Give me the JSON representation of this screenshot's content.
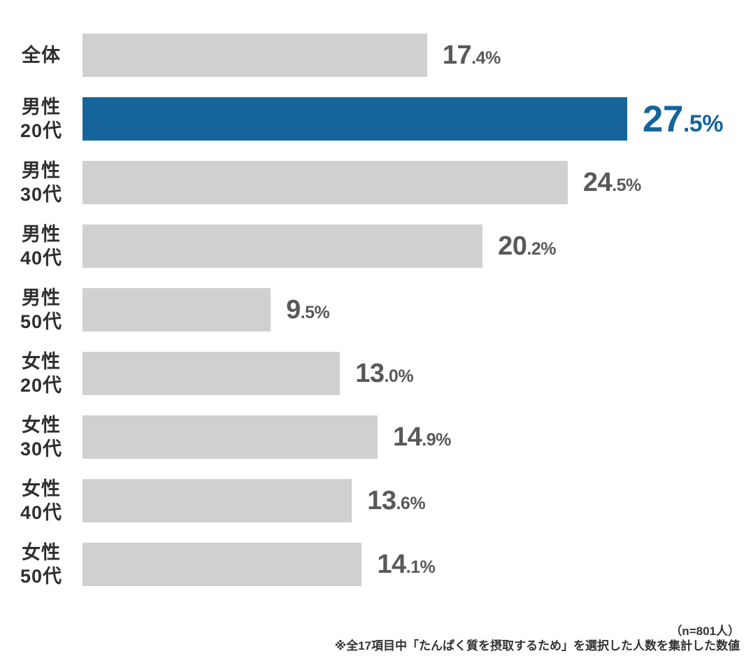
{
  "chart_data": {
    "type": "bar",
    "orientation": "horizontal",
    "title": "",
    "xlabel": "",
    "ylabel": "",
    "grid": false,
    "legend": null,
    "categories": [
      "全体",
      "男性20代",
      "男性30代",
      "男性40代",
      "男性50代",
      "女性20代",
      "女性30代",
      "女性40代",
      "女性50代"
    ],
    "category_lines": [
      [
        "全体"
      ],
      [
        "男性",
        "20代"
      ],
      [
        "男性",
        "30代"
      ],
      [
        "男性",
        "40代"
      ],
      [
        "男性",
        "50代"
      ],
      [
        "女性",
        "20代"
      ],
      [
        "女性",
        "30代"
      ],
      [
        "女性",
        "40代"
      ],
      [
        "女性",
        "50代"
      ]
    ],
    "values": [
      17.4,
      27.5,
      24.5,
      20.2,
      9.5,
      13.0,
      14.9,
      13.6,
      14.1
    ],
    "value_labels": [
      "17.4%",
      "27.5%",
      "24.5%",
      "20.2%",
      "9.5%",
      "13.0%",
      "14.9%",
      "13.6%",
      "14.1%"
    ],
    "xlim": [
      0,
      33.4
    ],
    "highlight_index": 1,
    "colors": {
      "bar_default": "#d0d0d0",
      "bar_highlight": "#15659b",
      "value_default": "#595959",
      "value_highlight": "#15659b",
      "label_color": "#2f2f2f",
      "background": "#ffffff",
      "footnote_color": "#333333"
    }
  },
  "footer": {
    "n_label": "（n=801人）",
    "note": "※全17項目中「たんぱく質を摂取するため」を選択した人数を集計した数値"
  }
}
